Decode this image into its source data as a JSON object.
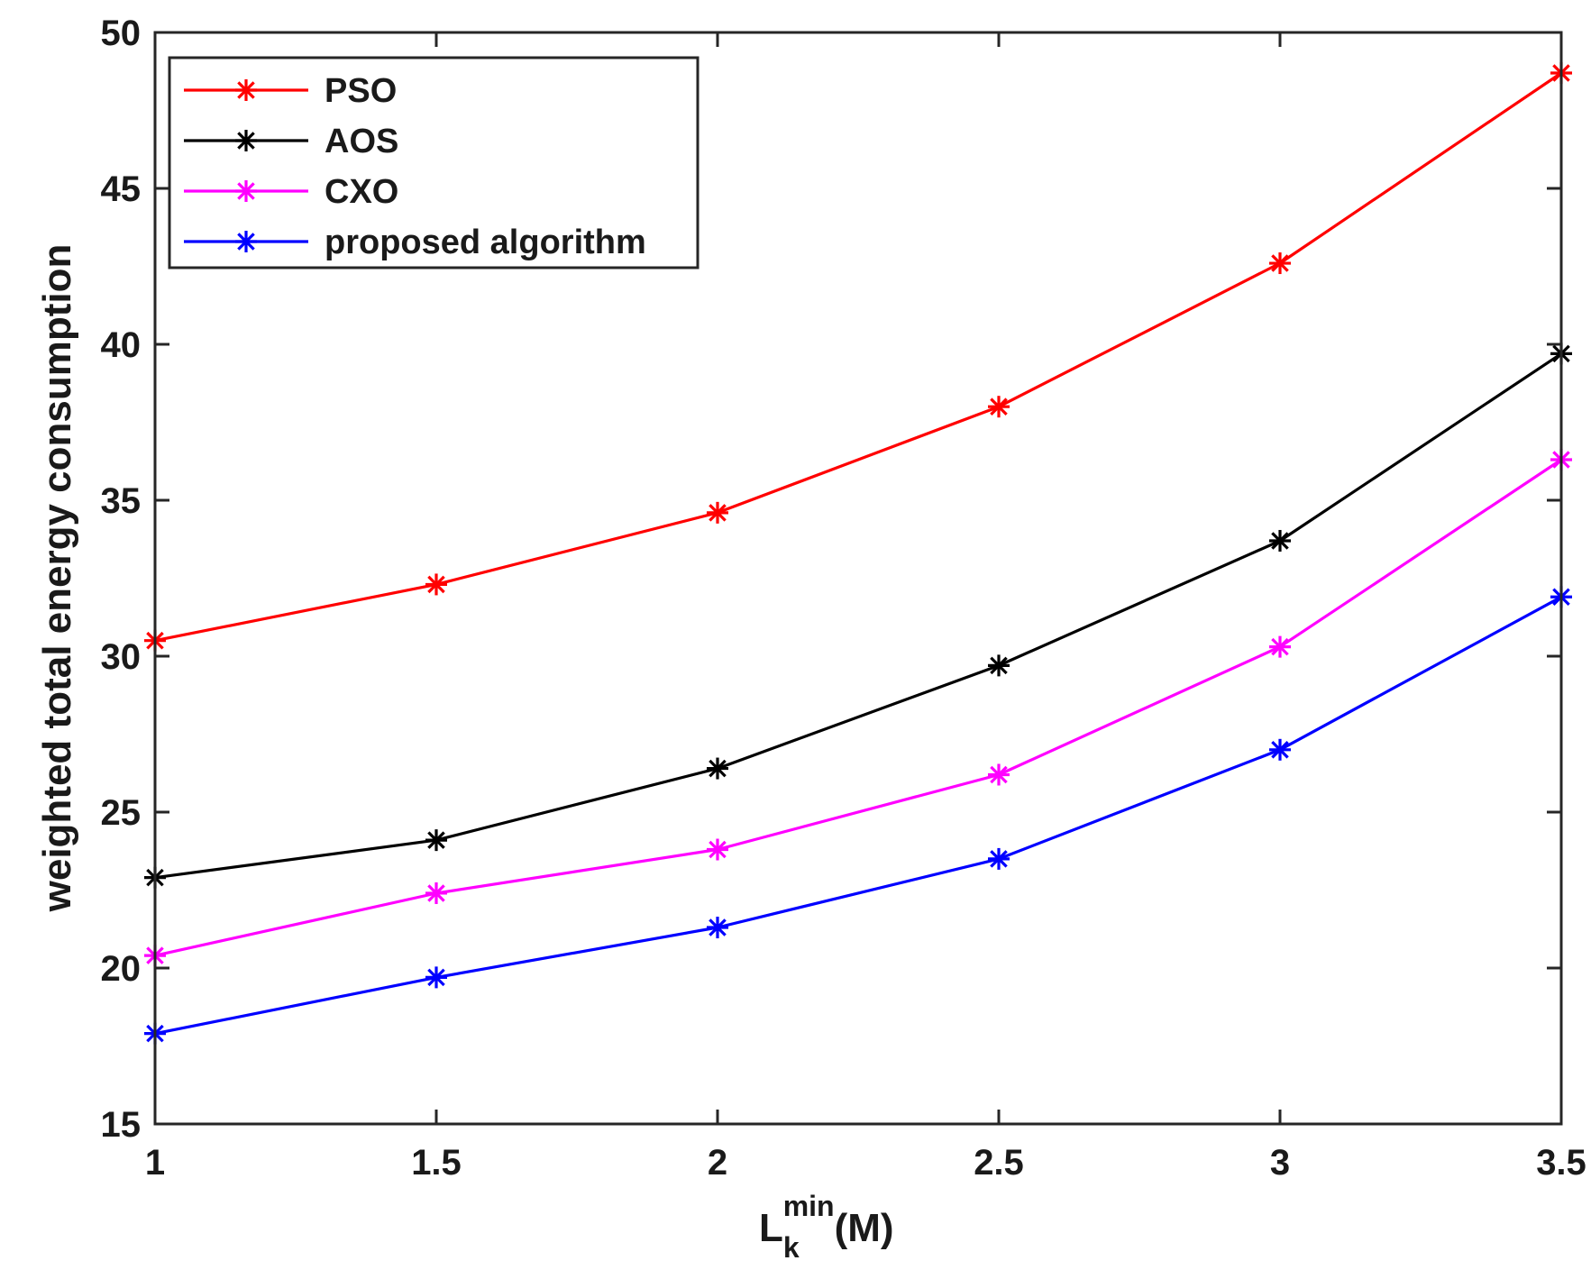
{
  "chart_data": {
    "type": "line",
    "title": "",
    "xlabel": {
      "main": "L",
      "subscript": "k",
      "superscript": "min",
      "suffix": "(M)"
    },
    "ylabel": "weighted total energy consumption",
    "x": [
      1,
      1.5,
      2,
      2.5,
      3,
      3.5
    ],
    "xlim": [
      1,
      3.5
    ],
    "ylim": [
      15,
      50
    ],
    "xticks": [
      1,
      1.5,
      2,
      2.5,
      3,
      3.5
    ],
    "xtick_labels": [
      "1",
      "1.5",
      "2",
      "2.5",
      "3",
      "3.5"
    ],
    "yticks": [
      15,
      20,
      25,
      30,
      35,
      40,
      45,
      50
    ],
    "ytick_labels": [
      "15",
      "20",
      "25",
      "30",
      "35",
      "40",
      "45",
      "50"
    ],
    "grid": false,
    "legend_position": "top-left",
    "marker": "asterisk",
    "series": [
      {
        "name": "PSO",
        "color": "#ff0000",
        "values": [
          30.5,
          32.3,
          34.6,
          38.0,
          42.6,
          48.7
        ]
      },
      {
        "name": "AOS",
        "color": "#000000",
        "values": [
          22.9,
          24.1,
          26.4,
          29.7,
          33.7,
          39.7
        ]
      },
      {
        "name": "CXO",
        "color": "#ff00ff",
        "values": [
          20.4,
          22.4,
          23.8,
          26.2,
          30.3,
          36.3
        ]
      },
      {
        "name": "proposed algorithm",
        "color": "#0000ff",
        "values": [
          17.9,
          19.7,
          21.3,
          23.5,
          27.0,
          31.9
        ]
      }
    ]
  }
}
